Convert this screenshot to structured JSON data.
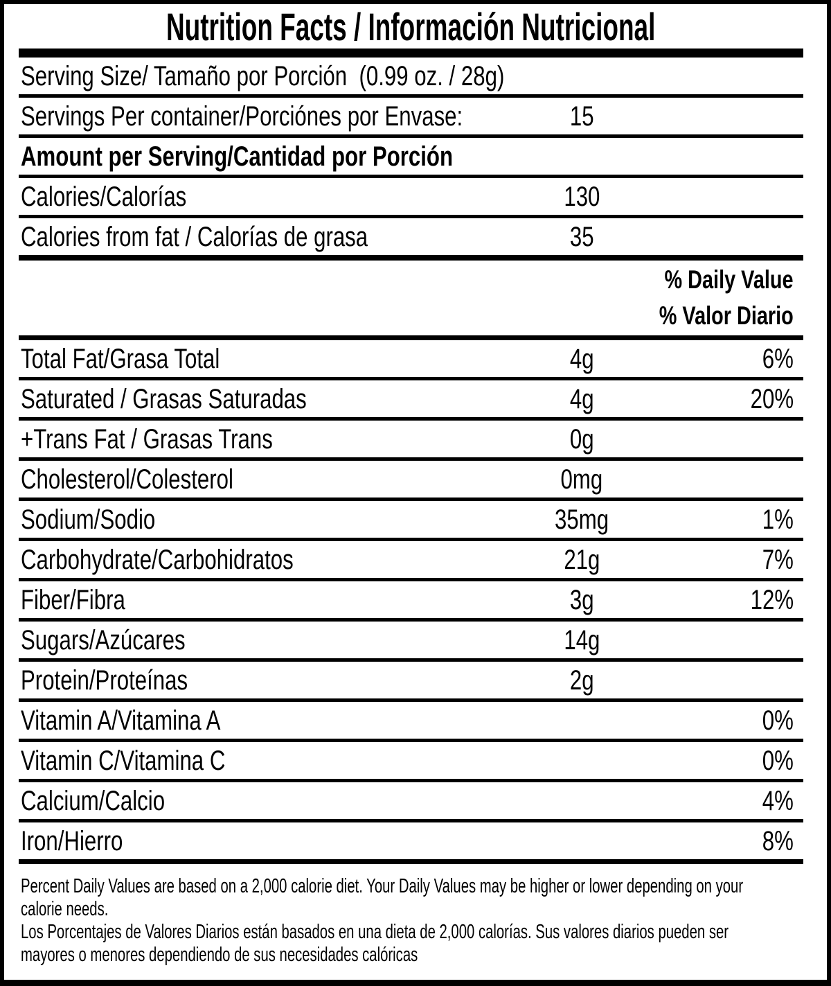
{
  "colors": {
    "ink": "#000000",
    "paper": "#ffffff"
  },
  "title": "Nutrition Facts / Información Nutricional",
  "serving_size_line": "Serving Size/ Tamaño por Porción  (0.99 oz. / 28g)",
  "servings_per_container": {
    "label": "Servings Per container/Porciónes por Envase:",
    "value": "15"
  },
  "amount_per_serving_heading": "Amount per Serving/Cantidad por Porción",
  "calories": {
    "label": "Calories/Calorías",
    "value": "130"
  },
  "calories_from_fat": {
    "label": "Calories from fat / Calorías de grasa",
    "value": "35"
  },
  "daily_value_header": {
    "line_en": "% Daily Value",
    "line_es": "% Valor Diario"
  },
  "nutrients": [
    {
      "label": "Total Fat/Grasa Total",
      "amount": "4g",
      "dv": "6%"
    },
    {
      "label": "Saturated / Grasas Saturadas",
      "amount": "4g",
      "dv": "20%"
    },
    {
      "label": "+Trans Fat / Grasas Trans",
      "amount": "0g",
      "dv": ""
    },
    {
      "label": "Cholesterol/Colesterol",
      "amount": "0mg",
      "dv": ""
    },
    {
      "label": "Sodium/Sodio",
      "amount": "35mg",
      "dv": "1%"
    },
    {
      "label": "Carbohydrate/Carbohidratos",
      "amount": "21g",
      "dv": "7%"
    },
    {
      "label": "Fiber/Fibra",
      "amount": "3g",
      "dv": "12%"
    },
    {
      "label": "Sugars/Azúcares",
      "amount": "14g",
      "dv": ""
    },
    {
      "label": "Protein/Proteínas",
      "amount": "2g",
      "dv": ""
    },
    {
      "label": "Vitamin A/Vitamina A",
      "amount": "",
      "dv": "0%"
    },
    {
      "label": "Vitamin C/Vitamina C",
      "amount": "",
      "dv": "0%"
    },
    {
      "label": "Calcium/Calcio",
      "amount": "",
      "dv": "4%"
    },
    {
      "label": "Iron/Hierro",
      "amount": "",
      "dv": "8%"
    }
  ],
  "footnote": {
    "lines": [
      "Percent Daily Values are based on a 2,000 calorie diet. Your Daily Values may be higher or lower depending on your",
      "calorie needs.",
      "Los Porcentajes de Valores Diarios están basados en una dieta de 2,000 calorías. Sus valores diarios pueden ser",
      "mayores o menores dependiendo de sus necesidades calóricas"
    ]
  }
}
